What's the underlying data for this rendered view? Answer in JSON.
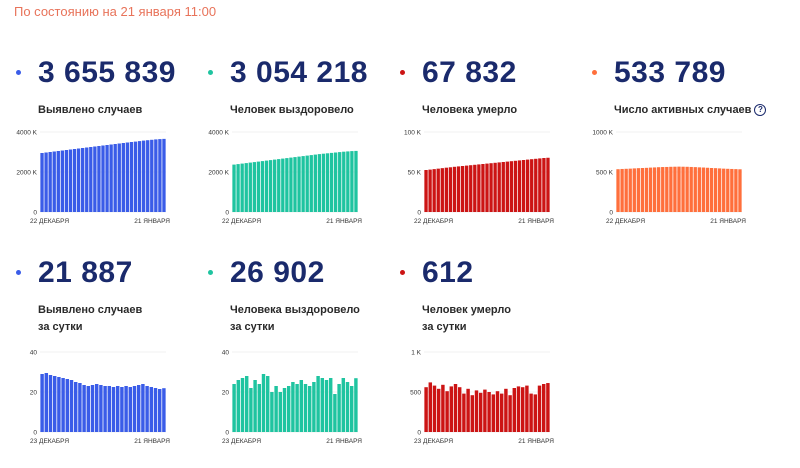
{
  "header": "По состоянию на 21 января 11:00",
  "help_icon": "question-circle-icon",
  "cards": [
    {
      "id": "card-confirmed",
      "value": "3 655 839",
      "label": "Выявлено случаев",
      "label2": "",
      "color": "#3a5ce8",
      "dot": "#3a5ce8"
    },
    {
      "id": "card-recovered",
      "value": "3 054 218",
      "label": "Человек выздоровело",
      "label2": "",
      "color": "#1fc4a0",
      "dot": "#1fc4a0"
    },
    {
      "id": "card-deaths",
      "value": "67 832",
      "label": "Человека умерло",
      "label2": "",
      "color": "#cc1414",
      "dot": "#cc1414"
    },
    {
      "id": "card-active",
      "value": "533 789",
      "label": "Число активных случаев",
      "label2": "",
      "color": "#ff6f3c",
      "dot": "#ff6f3c",
      "help": true
    },
    {
      "id": "card-daily-confirmed",
      "value": "21 887",
      "label": "Выявлено случаев",
      "label2": "за сутки",
      "color": "#3a5ce8",
      "dot": "#3a5ce8"
    },
    {
      "id": "card-daily-recovered",
      "value": "26 902",
      "label": "Человека выздоровело",
      "label2": "за сутки",
      "color": "#1fc4a0",
      "dot": "#1fc4a0"
    },
    {
      "id": "card-daily-deaths",
      "value": "612",
      "label": "Человек умерло",
      "label2": "за сутки",
      "color": "#cc1414",
      "dot": "#cc1414"
    }
  ],
  "chart_data": [
    {
      "type": "bar",
      "ticks": [
        "0",
        "2000 K",
        "4000 K"
      ],
      "ylim": [
        0,
        4000
      ],
      "x_start": "22 ДЕКАБРЯ",
      "x_end": "21 ЯНВАРЯ",
      "values": [
        2950,
        2975,
        3000,
        3025,
        3050,
        3075,
        3100,
        3125,
        3150,
        3175,
        3200,
        3225,
        3250,
        3275,
        3300,
        3325,
        3350,
        3375,
        3400,
        3425,
        3450,
        3475,
        3500,
        3520,
        3545,
        3570,
        3590,
        3610,
        3630,
        3645,
        3656
      ]
    },
    {
      "type": "bar",
      "ticks": [
        "0",
        "2000 K",
        "4000 K"
      ],
      "ylim": [
        0,
        4000
      ],
      "x_start": "22 ДЕКАБРЯ",
      "x_end": "21 ЯНВАРЯ",
      "values": [
        2370,
        2395,
        2420,
        2445,
        2470,
        2495,
        2520,
        2545,
        2570,
        2595,
        2620,
        2645,
        2670,
        2695,
        2720,
        2745,
        2770,
        2795,
        2820,
        2845,
        2870,
        2895,
        2915,
        2935,
        2955,
        2975,
        2995,
        3015,
        3030,
        3045,
        3054
      ]
    },
    {
      "type": "bar",
      "ticks": [
        "0",
        "50 K",
        "100 K"
      ],
      "ylim": [
        0,
        100
      ],
      "x_start": "22 ДЕКАБРЯ",
      "x_end": "21 ЯНВАРЯ",
      "values": [
        52.5,
        53,
        53.6,
        54.2,
        54.8,
        55.4,
        55.9,
        56.5,
        57,
        57.5,
        58,
        58.5,
        59,
        59.5,
        60,
        60.5,
        61,
        61.5,
        62,
        62.5,
        63,
        63.5,
        64,
        64.5,
        65,
        65.5,
        66,
        66.5,
        67,
        67.5,
        67.8
      ]
    },
    {
      "type": "bar",
      "ticks": [
        "0",
        "500 K",
        "1000 K"
      ],
      "ylim": [
        0,
        1000
      ],
      "x_start": "22 ДЕКАБРЯ",
      "x_end": "21 ЯНВАРЯ",
      "values": [
        535,
        538,
        540,
        542,
        545,
        548,
        550,
        552,
        555,
        557,
        560,
        562,
        563,
        565,
        566,
        567,
        566,
        565,
        563,
        561,
        558,
        556,
        553,
        550,
        548,
        545,
        542,
        540,
        538,
        536,
        534
      ]
    },
    {
      "type": "bar",
      "ticks": [
        "0",
        "20",
        "40"
      ],
      "ylim": [
        0,
        40
      ],
      "x_start": "23 ДЕКАБРЯ",
      "x_end": "21 ЯНВАРЯ",
      "values": [
        29,
        29.5,
        28.5,
        28,
        27.5,
        27,
        26.5,
        26,
        25,
        24.5,
        23.5,
        23,
        23.5,
        24,
        23.5,
        23,
        23,
        22.5,
        23,
        22.5,
        23,
        22.5,
        23,
        23.5,
        24,
        23,
        22.5,
        22,
        21.5,
        21.9
      ]
    },
    {
      "type": "bar",
      "ticks": [
        "0",
        "20",
        "40"
      ],
      "ylim": [
        0,
        40
      ],
      "x_start": "23 ДЕКАБРЯ",
      "x_end": "21 ЯНВАРЯ",
      "values": [
        24,
        26,
        27,
        28,
        22,
        26,
        24,
        29,
        28,
        20,
        23,
        20,
        22,
        23,
        25,
        24,
        26,
        24,
        23,
        25,
        28,
        27,
        26,
        27,
        19,
        24,
        27,
        25,
        23,
        26.9
      ]
    },
    {
      "type": "bar",
      "ticks": [
        "0",
        "500",
        "1 K"
      ],
      "ylim": [
        0,
        1000
      ],
      "x_start": "23 ДЕКАБРЯ",
      "x_end": "21 ЯНВАРЯ",
      "values": [
        560,
        620,
        580,
        540,
        590,
        510,
        570,
        600,
        560,
        480,
        540,
        460,
        520,
        490,
        530,
        500,
        470,
        510,
        480,
        540,
        460,
        550,
        570,
        560,
        580,
        480,
        470,
        580,
        600,
        612
      ]
    }
  ]
}
